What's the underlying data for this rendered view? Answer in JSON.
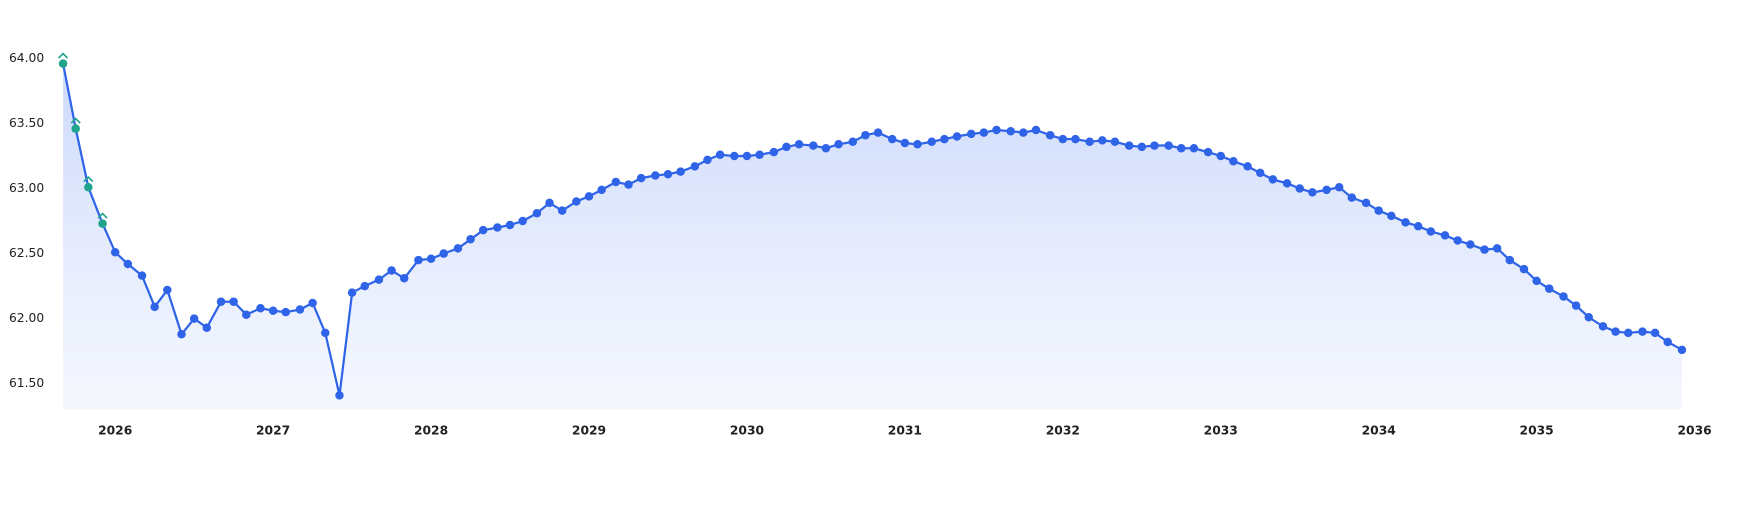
{
  "chart_data": {
    "type": "line",
    "x": [
      2025.67,
      2025.75,
      2025.83,
      2025.92,
      2026.0,
      2026.08,
      2026.17,
      2026.25,
      2026.33,
      2026.42,
      2026.5,
      2026.58,
      2026.67,
      2026.75,
      2026.83,
      2026.92,
      2027.0,
      2027.08,
      2027.17,
      2027.25,
      2027.33,
      2027.42,
      2027.5,
      2027.58,
      2027.67,
      2027.75,
      2027.83,
      2027.92,
      2028.0,
      2028.08,
      2028.17,
      2028.25,
      2028.33,
      2028.42,
      2028.5,
      2028.58,
      2028.67,
      2028.75,
      2028.83,
      2028.92,
      2029.0,
      2029.08,
      2029.17,
      2029.25,
      2029.33,
      2029.42,
      2029.5,
      2029.58,
      2029.67,
      2029.75,
      2029.83,
      2029.92,
      2030.0,
      2030.08,
      2030.17,
      2030.25,
      2030.33,
      2030.42,
      2030.5,
      2030.58,
      2030.67,
      2030.75,
      2030.83,
      2030.92,
      2031.0,
      2031.08,
      2031.17,
      2031.25,
      2031.33,
      2031.42,
      2031.5,
      2031.58,
      2031.67,
      2031.75,
      2031.83,
      2031.92,
      2032.0,
      2032.08,
      2032.17,
      2032.25,
      2032.33,
      2032.42,
      2032.5,
      2032.58,
      2032.67,
      2032.75,
      2032.83,
      2032.92,
      2033.0,
      2033.08,
      2033.17,
      2033.25,
      2033.33,
      2033.42,
      2033.5,
      2033.58,
      2033.67,
      2033.75,
      2033.83,
      2033.92,
      2034.0,
      2034.08,
      2034.17,
      2034.25,
      2034.33,
      2034.42,
      2034.5,
      2034.58,
      2034.67,
      2034.75,
      2034.83,
      2034.92,
      2035.0,
      2035.08,
      2035.17,
      2035.25,
      2035.33,
      2035.42,
      2035.5,
      2035.58,
      2035.67,
      2035.75,
      2035.83,
      2035.92
    ],
    "values": [
      63.96,
      63.46,
      63.01,
      62.73,
      62.51,
      62.42,
      62.33,
      62.09,
      62.22,
      61.88,
      62.0,
      61.93,
      62.13,
      62.13,
      62.03,
      62.08,
      62.06,
      62.05,
      62.07,
      62.12,
      61.89,
      61.41,
      62.2,
      62.25,
      62.3,
      62.37,
      62.31,
      62.45,
      62.46,
      62.5,
      62.54,
      62.61,
      62.68,
      62.7,
      62.72,
      62.75,
      62.81,
      62.89,
      62.83,
      62.9,
      62.94,
      62.99,
      63.05,
      63.03,
      63.08,
      63.1,
      63.11,
      63.13,
      63.17,
      63.22,
      63.26,
      63.25,
      63.25,
      63.26,
      63.28,
      63.32,
      63.34,
      63.33,
      63.31,
      63.34,
      63.36,
      63.41,
      63.43,
      63.38,
      63.35,
      63.34,
      63.36,
      63.38,
      63.4,
      63.42,
      63.43,
      63.45,
      63.44,
      63.43,
      63.45,
      63.41,
      63.38,
      63.38,
      63.36,
      63.37,
      63.36,
      63.33,
      63.32,
      63.33,
      63.33,
      63.31,
      63.31,
      63.28,
      63.25,
      63.21,
      63.17,
      63.12,
      63.07,
      63.04,
      63.0,
      62.97,
      62.99,
      63.01,
      62.93,
      62.89,
      62.83,
      62.79,
      62.74,
      62.71,
      62.67,
      62.64,
      62.6,
      62.57,
      62.53,
      62.54,
      62.45,
      62.38,
      62.29,
      62.23,
      62.17,
      62.1,
      62.01,
      61.94,
      61.9,
      61.89,
      61.9,
      61.89,
      61.82,
      61.76
    ],
    "color": "#2f64e8",
    "highlight_points": 4,
    "highlight_color": "#1ea58c",
    "area": true,
    "xlim": [
      2025.6,
      2036.1
    ],
    "xticks": [
      2026,
      2027,
      2028,
      2029,
      2030,
      2031,
      2032,
      2033,
      2034,
      2035,
      2036
    ],
    "ylim": [
      61.3,
      64.1
    ],
    "yticks": [
      {
        "value": 61.5,
        "label": "61.50"
      },
      {
        "value": 62,
        "label": "62.00"
      },
      {
        "value": 62.5,
        "label": "62.50"
      },
      {
        "value": 63,
        "label": "63.00"
      },
      {
        "value": 63.5,
        "label": "63.50"
      },
      {
        "value": 64,
        "label": "64.00"
      }
    ]
  }
}
